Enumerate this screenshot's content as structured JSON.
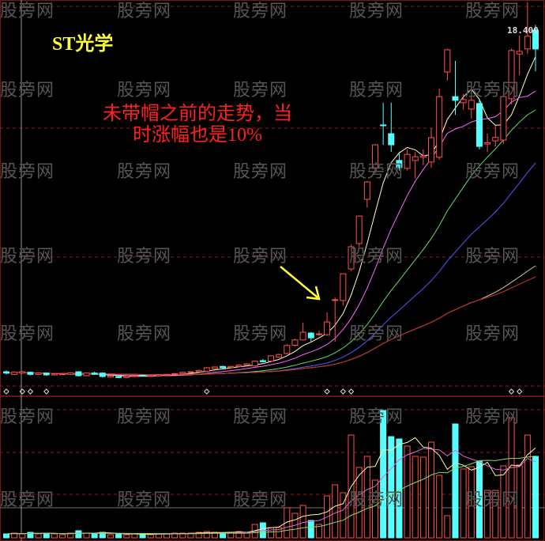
{
  "chart_data": {
    "type": "candlestick",
    "title": "ST光学",
    "annotation": [
      "未带帽之前的走势，当",
      "时涨幅也是10%"
    ],
    "price_label": "18.400",
    "watermark": "股旁网",
    "colors": {
      "up": "#ff5050",
      "down": "#55ffff",
      "background": "#000000",
      "grid": "#8b1a1a",
      "annotation": "#ff2020",
      "title": "#ffff33",
      "arrow": "#ffff33"
    },
    "ma_periods": [
      5,
      10,
      20,
      30,
      60,
      120,
      250
    ],
    "ma_colors": [
      "#ffffcc",
      "#ff66ff",
      "#66dd66",
      "#5555ff",
      "#d8c8a0",
      "#339933",
      "#cc2222"
    ],
    "volume_ma_periods": [
      5,
      10,
      20
    ],
    "volume_ma_colors": [
      "#ffffaa",
      "#dd66dd",
      "#88dd55"
    ],
    "ohlc": [
      [
        4.6,
        4.65,
        4.5,
        4.55
      ],
      [
        4.5,
        4.62,
        4.48,
        4.58
      ],
      [
        4.55,
        4.63,
        4.52,
        4.6
      ],
      [
        4.58,
        4.6,
        4.46,
        4.5
      ],
      [
        4.5,
        4.58,
        4.48,
        4.55
      ],
      [
        4.55,
        4.57,
        4.45,
        4.48
      ],
      [
        4.48,
        4.55,
        4.46,
        4.52
      ],
      [
        4.52,
        4.56,
        4.49,
        4.52
      ],
      [
        4.5,
        4.58,
        4.48,
        4.56
      ],
      [
        4.6,
        4.62,
        4.42,
        4.45
      ],
      [
        4.45,
        4.57,
        4.43,
        4.55
      ],
      [
        4.55,
        4.6,
        4.48,
        4.5
      ],
      [
        4.55,
        4.58,
        4.38,
        4.42
      ],
      [
        4.4,
        4.47,
        4.37,
        4.45
      ],
      [
        4.42,
        4.44,
        4.35,
        4.38
      ],
      [
        4.38,
        4.45,
        4.36,
        4.43
      ],
      [
        4.42,
        4.47,
        4.4,
        4.45
      ],
      [
        4.47,
        4.49,
        4.42,
        4.44
      ],
      [
        4.45,
        4.48,
        4.43,
        4.45
      ],
      [
        4.44,
        4.5,
        4.42,
        4.48
      ],
      [
        4.47,
        4.52,
        4.45,
        4.5
      ],
      [
        4.5,
        4.55,
        4.48,
        4.53
      ],
      [
        4.53,
        4.6,
        4.51,
        4.58
      ],
      [
        4.58,
        4.62,
        4.56,
        4.6
      ],
      [
        4.6,
        4.68,
        4.58,
        4.65
      ],
      [
        4.62,
        4.78,
        4.6,
        4.75
      ],
      [
        4.72,
        4.8,
        4.7,
        4.78
      ],
      [
        4.8,
        4.83,
        4.72,
        4.75
      ],
      [
        4.76,
        4.82,
        4.74,
        4.8
      ],
      [
        4.8,
        4.88,
        4.78,
        4.85
      ],
      [
        4.85,
        4.92,
        4.83,
        4.9
      ],
      [
        4.82,
        5.02,
        4.8,
        5.0
      ],
      [
        5.02,
        5.08,
        4.95,
        4.98
      ],
      [
        5.0,
        5.22,
        4.98,
        5.2
      ],
      [
        5.15,
        5.28,
        5.12,
        5.25
      ],
      [
        5.29,
        5.65,
        5.25,
        5.59
      ],
      [
        5.6,
        5.85,
        5.55,
        5.8
      ],
      [
        5.8,
        6.45,
        5.78,
        6.09
      ],
      [
        6.06,
        6.1,
        5.75,
        5.88
      ],
      [
        6.0,
        6.15,
        5.95,
        6.03
      ],
      [
        6.0,
        6.84,
        5.95,
        6.48
      ],
      [
        7.3,
        7.4,
        5.73,
        7.32
      ],
      [
        7.29,
        8.3,
        7.1,
        8.3
      ],
      [
        8.48,
        9.4,
        8.4,
        9.32
      ],
      [
        9.44,
        10.5,
        9.3,
        10.48
      ],
      [
        11.11,
        11.8,
        10.8,
        11.77
      ],
      [
        12.28,
        13.2,
        12.1,
        13.17
      ],
      [
        13.92,
        14.76,
        13.17,
        13.9
      ],
      [
        13.59,
        14.76,
        12.9,
        13.17
      ],
      [
        12.58,
        12.9,
        12.2,
        12.31
      ],
      [
        12.28,
        13.0,
        12.2,
        12.81
      ],
      [
        12.58,
        12.9,
        11.9,
        12.72
      ],
      [
        12.7,
        13.0,
        12.4,
        12.75
      ],
      [
        12.52,
        13.8,
        12.3,
        13.44
      ],
      [
        12.7,
        15.3,
        12.6,
        14.99
      ],
      [
        15.92,
        16.8,
        15.6,
        16.76
      ],
      [
        14.99,
        16.34,
        14.3,
        14.85
      ],
      [
        14.76,
        15.1,
        14.5,
        14.88
      ],
      [
        14.52,
        15.56,
        14.16,
        14.85
      ],
      [
        14.73,
        14.9,
        13.0,
        13.11
      ],
      [
        13.2,
        13.6,
        12.9,
        13.25
      ],
      [
        13.32,
        13.9,
        13.1,
        13.45
      ],
      [
        13.35,
        15.2,
        13.2,
        14.99
      ],
      [
        14.91,
        16.8,
        14.7,
        16.73
      ],
      [
        16.6,
        17.3,
        15.8,
        16.7
      ],
      [
        16.79,
        18.55,
        16.6,
        17.27
      ],
      [
        17.5,
        17.7,
        15.95,
        16.79
      ]
    ],
    "volume": [
      5,
      6,
      5,
      7,
      5,
      6,
      5,
      4,
      6,
      9,
      6,
      5,
      7,
      4,
      5,
      4,
      5,
      5,
      4,
      5,
      5,
      6,
      6,
      6,
      7,
      8,
      7,
      6,
      7,
      8,
      7,
      17,
      19,
      13,
      13,
      38,
      31,
      41,
      22,
      17,
      53,
      67,
      57,
      130,
      89,
      103,
      73,
      161,
      128,
      125,
      116,
      103,
      102,
      121,
      79,
      28,
      144,
      87,
      90,
      97,
      60,
      60,
      91,
      152,
      92,
      130,
      103
    ],
    "signal_markers": [
      0,
      2,
      3,
      5,
      25,
      40,
      42,
      43,
      63,
      64
    ]
  }
}
